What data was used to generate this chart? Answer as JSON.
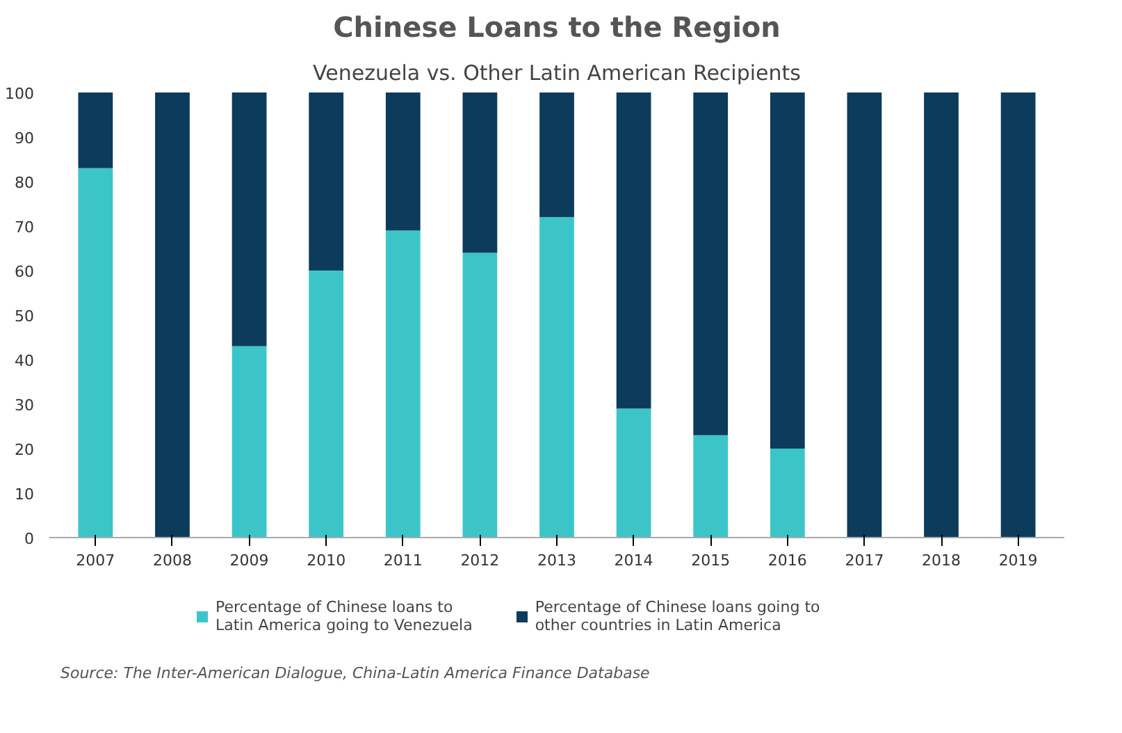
{
  "chart_data": {
    "type": "bar",
    "stacked": true,
    "title": "Chinese Loans to the Region",
    "subtitle": "Venezuela vs. Other Latin American Recipients",
    "categories": [
      "2007",
      "2008",
      "2009",
      "2010",
      "2011",
      "2012",
      "2013",
      "2014",
      "2015",
      "2016",
      "2017",
      "2018",
      "2019"
    ],
    "series": [
      {
        "name": "Percentage of Chinese loans to Latin America going to Venezuela",
        "color": "#3cc5c9",
        "values": [
          83,
          0,
          43,
          60,
          69,
          64,
          72,
          29,
          23,
          20,
          0,
          0,
          0
        ]
      },
      {
        "name": "Percentage of Chinese loans going to other countries in Latin America",
        "color": "#0c3b5c",
        "values": [
          17,
          100,
          57,
          40,
          31,
          36,
          28,
          71,
          77,
          80,
          100,
          100,
          100
        ]
      }
    ],
    "ylim": [
      0,
      100
    ],
    "yticks": [
      0,
      10,
      20,
      30,
      40,
      50,
      60,
      70,
      80,
      90,
      100
    ],
    "grid": false,
    "legend": "bottom",
    "annotations": [
      "Source: The Inter-American Dialogue, China-Latin America Finance Database"
    ]
  }
}
